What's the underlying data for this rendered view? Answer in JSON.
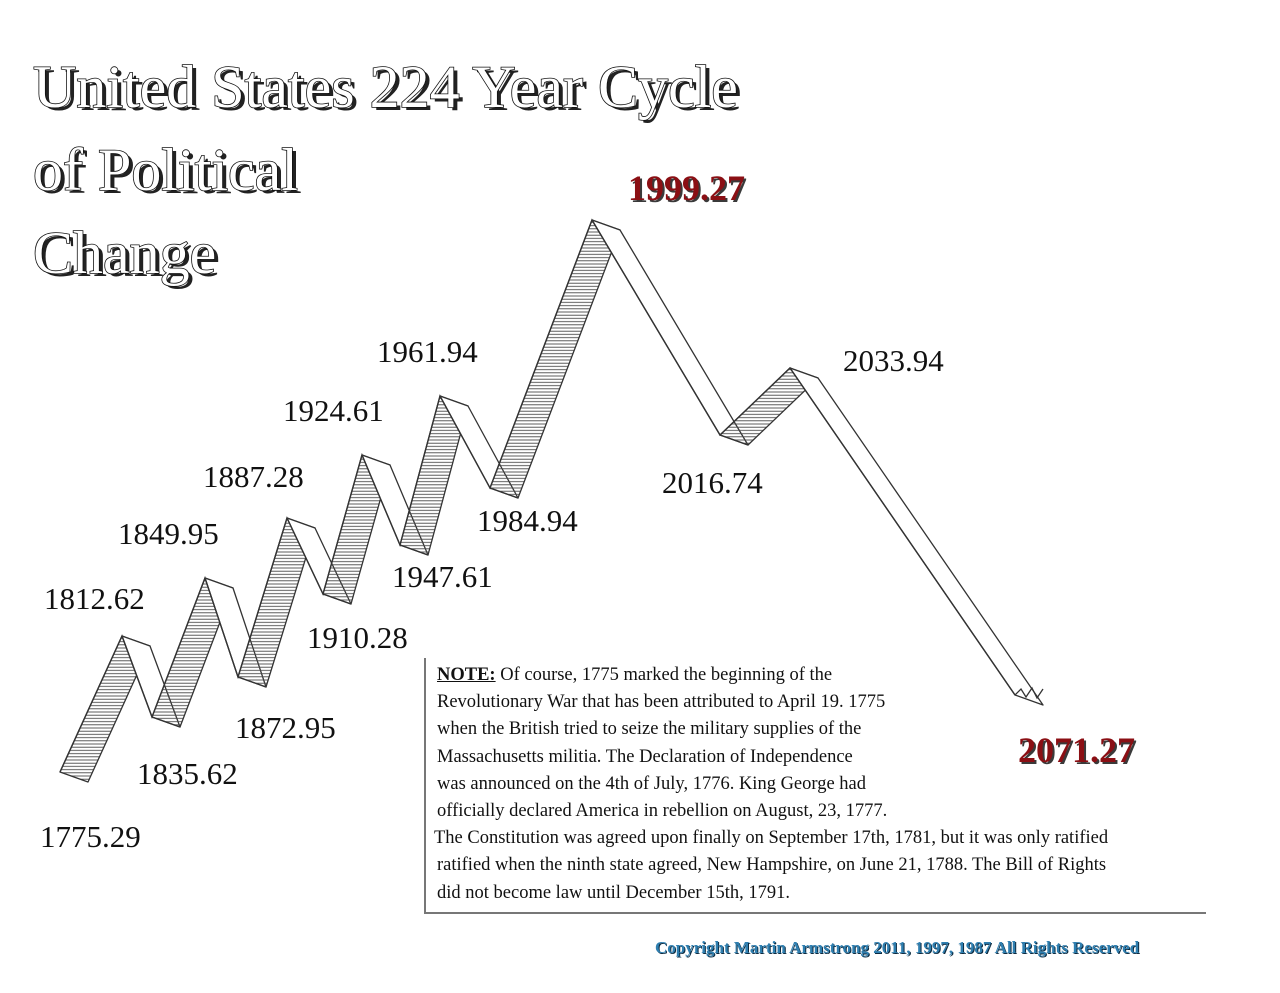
{
  "title": {
    "lines": [
      "United States 224 Year Cycle",
      "of Political",
      "Change"
    ]
  },
  "chart_data": {
    "type": "line",
    "title": "United States 224 Year Cycle of Political Change",
    "points": [
      {
        "label": "1775.29",
        "kind": "low"
      },
      {
        "label": "1812.62",
        "kind": "high"
      },
      {
        "label": "1835.62",
        "kind": "low"
      },
      {
        "label": "1849.95",
        "kind": "high"
      },
      {
        "label": "1872.95",
        "kind": "low"
      },
      {
        "label": "1887.28",
        "kind": "high"
      },
      {
        "label": "1910.28",
        "kind": "low"
      },
      {
        "label": "1924.61",
        "kind": "high"
      },
      {
        "label": "1947.61",
        "kind": "low"
      },
      {
        "label": "1961.94",
        "kind": "high"
      },
      {
        "label": "1984.94",
        "kind": "low"
      },
      {
        "label": "1999.27",
        "kind": "major-high",
        "emphasis": true
      },
      {
        "label": "2016.74",
        "kind": "low"
      },
      {
        "label": "2033.94",
        "kind": "high"
      },
      {
        "label": "2071.27",
        "kind": "major-low",
        "emphasis": true
      }
    ],
    "xlabel": "",
    "ylabel": "",
    "grid": false,
    "legend": "none"
  },
  "note": {
    "heading": "NOTE:",
    "first_line": " Of course, 1775 marked the beginning of the",
    "lines": [
      "Revolutionary War that has been attributed to April 19. 1775",
      "when the British tried to seize the military supplies of the",
      "Massachusetts militia. The Declaration of Independence",
      "was  announced on the 4th of July, 1776. King George had",
      "officially declared America in rebellion on August, 23, 1777.",
      "The Constitution was agreed upon finally on September 17th, 1781, but it was only ratified",
      " ratified when the ninth state agreed,  New Hampshire, on June 21, 1788. The Bill of Rights",
      " did not  become law until December 15th, 1791."
    ]
  },
  "copyright": "Copyright Martin Armstrong 2011, 1997, 1987 All Rights Reserved",
  "colors": {
    "emphasis": "#8b0f14",
    "copyright": "#2f7fb0",
    "ribbon_stroke": "#333333",
    "hatch": "#555555"
  }
}
